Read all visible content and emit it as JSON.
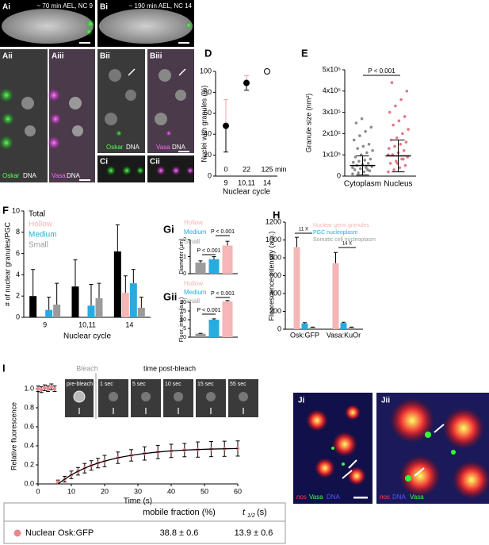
{
  "images": {
    "Ai": {
      "label": "Ai",
      "caption": "~ 70 min AEL, NC 9"
    },
    "Bi": {
      "label": "Bi",
      "caption": "~ 190 min AEL, NC 14"
    },
    "Aii": {
      "label": "Aii",
      "channels": [
        "Oskar",
        "DNA"
      ]
    },
    "Aiii": {
      "label": "Aiii",
      "channels": [
        "Vasa",
        "DNA"
      ]
    },
    "Bii": {
      "label": "Bii",
      "channels": [
        "Oskar",
        "DNA"
      ]
    },
    "Biii": {
      "label": "Biii",
      "channels": [
        "Vasa",
        "DNA"
      ]
    },
    "Ci": {
      "label": "Ci"
    },
    "Cii": {
      "label": "Cii"
    },
    "Ji": {
      "label": "Ji",
      "channels": [
        "nos",
        "Vasa",
        "DNA"
      ]
    },
    "Jii": {
      "label": "Jii",
      "channels": [
        "nos",
        "DNA",
        "Vasa"
      ]
    }
  },
  "table": {
    "mobile_fraction": "mobile fraction (%)",
    "t_half": {
      "symbol": "t",
      "subscript": "1/2",
      "unit": "(s)"
    },
    "rows": [
      [
        "38.8 ± 0.6",
        "13.9 ± 0.6"
      ]
    ]
  },
  "chart_data": [
    {
      "type": "dot",
      "panel": "D",
      "y_label": "Nuclei with granules (%)",
      "x_label": "Nuclear cycle",
      "categories": [
        "9",
        "10,11",
        "14"
      ],
      "values": [
        48,
        89,
        100
      ],
      "errors": [
        25,
        7,
        null
      ],
      "colors": [
        "#000000",
        "#000000",
        "none"
      ],
      "error_color": "#e8a0a0",
      "time_labels": [
        "0",
        "22",
        "125"
      ],
      "time_unit": "min",
      "ylim": [
        0,
        100
      ],
      "yticks": [
        0,
        20,
        40,
        60,
        80,
        100
      ]
    },
    {
      "type": "strip",
      "panel": "E",
      "y_label": "Granule size (nm²)",
      "categories": [
        "Cytoplasm",
        "Nucleus"
      ],
      "colors": [
        "#8c8c8c",
        "#e07a84"
      ],
      "points": [
        [
          10000,
          15000,
          20000,
          25000,
          30000,
          35000,
          40000,
          45000,
          50000,
          55000,
          60000,
          65000,
          70000,
          75000,
          80000,
          90000,
          100000,
          110000,
          120000,
          130000,
          140000,
          150000,
          170000,
          190000,
          210000,
          230000,
          250000,
          270000,
          30000,
          40000
        ],
        [
          20000,
          30000,
          40000,
          50000,
          60000,
          70000,
          80000,
          90000,
          100000,
          110000,
          120000,
          130000,
          140000,
          150000,
          160000,
          170000,
          180000,
          200000,
          220000,
          240000,
          260000,
          280000,
          300000,
          330000,
          360000,
          400000,
          440000,
          60000,
          80000,
          100000
        ]
      ],
      "means": [
        50000,
        95000
      ],
      "sd": [
        45000,
        75000
      ],
      "annotations": [
        "P < 0.001"
      ],
      "ylim": [
        0,
        500000
      ],
      "yticks": [
        0,
        {
          "value": 100000,
          "label": "1x10⁵"
        },
        {
          "value": 200000,
          "label": "2x10⁵"
        },
        {
          "value": 300000,
          "label": "3x10⁵"
        },
        {
          "value": 400000,
          "label": "4x10⁵"
        },
        {
          "value": 500000,
          "label": "5x10⁵"
        }
      ]
    },
    {
      "type": "bar",
      "panel": "F",
      "y_label": "# of nuclear granules/PGC",
      "x_label": "Nuclear cycle",
      "categories": [
        "9",
        "10,11",
        "14"
      ],
      "series": [
        {
          "name": "Total",
          "color": "#000000",
          "values": [
            2,
            2.9,
            6.2
          ],
          "errors": [
            2.5,
            2.5,
            2.5
          ]
        },
        {
          "name": "Hollow",
          "color": "#f4b6b6",
          "values": [
            null,
            null,
            2.3
          ],
          "errors": [
            null,
            null,
            1.6
          ]
        },
        {
          "name": "Medium",
          "color": "#29aae1",
          "values": [
            0.7,
            1.1,
            3.2
          ],
          "errors": [
            1.2,
            2,
            1.3
          ]
        },
        {
          "name": "Small",
          "color": "#9b9b9b",
          "values": [
            1.2,
            1.8,
            0.9
          ],
          "errors": [
            2,
            1.4,
            1
          ]
        }
      ],
      "ylim": [
        0,
        10
      ],
      "yticks": [
        0,
        2,
        4,
        6,
        8,
        10
      ]
    },
    {
      "type": "bar",
      "panel": "Gi",
      "y_label": "Diameter (μm)",
      "categories": [
        null
      ],
      "series": [
        {
          "name": "Hollow",
          "color": "#f4b6b6",
          "values": [
            1.65
          ],
          "errors": [
            0.25
          ]
        },
        {
          "name": "Medium",
          "color": "#29aae1",
          "values": [
            0.85
          ],
          "errors": [
            0.15
          ]
        },
        {
          "name": "Small",
          "color": "#9b9b9b",
          "values": [
            0.65
          ],
          "errors": [
            0.1
          ]
        }
      ],
      "draw_order": [
        2,
        1,
        0
      ],
      "annotations": [
        "P < 0.001",
        "P < 0.001"
      ],
      "ylim": [
        0,
        2
      ],
      "yticks": [
        0,
        1,
        2
      ]
    },
    {
      "type": "bar",
      "panel": "Gii",
      "y_label": "Fluor. intens (a.u.)",
      "categories": [
        null
      ],
      "series": [
        {
          "name": "Hollow",
          "color": "#f4b6b6",
          "values": [
            20.5
          ],
          "errors": [
            0.5
          ]
        },
        {
          "name": "Medium",
          "color": "#29aae1",
          "values": [
            10
          ],
          "errors": [
            0.5
          ]
        },
        {
          "name": "Small",
          "color": "#9b9b9b",
          "values": [
            2
          ],
          "errors": [
            0.2
          ]
        }
      ],
      "draw_order": [
        2,
        1,
        0
      ],
      "annotations": [
        "P < 0.001",
        "P < 0.001"
      ],
      "ylim": [
        0,
        20
      ],
      "yticks": [
        0,
        5,
        10,
        15,
        20
      ]
    },
    {
      "type": "bar",
      "panel": "H",
      "y_label": "Fluorescence intensity (a.u.)",
      "categories": [
        "Osk:GFP",
        "Vasa:KuOr"
      ],
      "series": [
        {
          "name": "Nuclear germ granules",
          "color": "#f4b6b6",
          "values": [
            920,
            740
          ],
          "errors": [
            110,
            120
          ]
        },
        {
          "name": "PGC nucleoplasm",
          "color": "#29aae1",
          "values": [
            65,
            70
          ],
          "errors": [
            8,
            8
          ]
        },
        {
          "name": "Somatic cell nucleoplasm",
          "color": "#9b9b9b",
          "values": [
            20,
            20
          ],
          "errors": [
            4,
            4
          ]
        }
      ],
      "annotations": [
        "11 X",
        "14 X"
      ],
      "ylim": [
        0,
        1200
      ],
      "yticks": [
        0,
        200,
        400,
        600,
        800,
        1000,
        1200
      ]
    },
    {
      "type": "line",
      "panel": "I",
      "y_label": "Relative fluorescence",
      "x_label": "Time (s)",
      "x": [
        0,
        1,
        2,
        3,
        4,
        5,
        6,
        8,
        10,
        12,
        14,
        16,
        18,
        20,
        24,
        28,
        32,
        36,
        40,
        44,
        48,
        52,
        56,
        60
      ],
      "series": [
        {
          "name": "Nuclear Osk:GFP",
          "color": "#e8888f",
          "values": [
            1.0,
            0.99,
            1.01,
            1.0,
            1.02,
            1.0,
            0.02,
            0.05,
            0.095,
            0.133,
            0.165,
            0.194,
            0.219,
            0.24,
            0.275,
            0.3,
            0.32,
            0.335,
            0.347,
            0.355,
            0.361,
            0.366,
            0.369,
            0.372
          ],
          "errors": [
            0.03,
            0.03,
            0.03,
            0.03,
            0.03,
            0.03,
            0.02,
            0.03,
            0.04,
            0.04,
            0.05,
            0.05,
            0.05,
            0.06,
            0.06,
            0.06,
            0.07,
            0.07,
            0.07,
            0.07,
            0.08,
            0.08,
            0.08,
            0.08
          ]
        },
        {
          "color": "#000000",
          "values": [
            null,
            null,
            null,
            null,
            null,
            null,
            0.0,
            0.05,
            0.095,
            0.133,
            0.165,
            0.194,
            0.219,
            0.24,
            0.275,
            0.3,
            0.32,
            0.335,
            0.347,
            0.355,
            0.361,
            0.366,
            0.369,
            0.372
          ]
        }
      ],
      "inset": {
        "bleach": "Bleach",
        "title": "time post-bleach",
        "frames": [
          "pre-bleach",
          "1 sec",
          "5 sec",
          "10 sec",
          "15 sec",
          "55 sec"
        ]
      },
      "xlim": [
        0,
        60
      ],
      "xticks": [
        0,
        10,
        20,
        30,
        40,
        50,
        60
      ],
      "ylim": [
        0,
        1
      ],
      "yticks": [
        {
          "value": 0,
          "label": "0.0"
        },
        {
          "value": 0.2,
          "label": "0.2"
        },
        {
          "value": 0.4,
          "label": "0.4"
        },
        {
          "value": 0.6,
          "label": "0.6"
        },
        {
          "value": 0.8,
          "label": "0.8"
        },
        {
          "value": 1,
          "label": "1.0"
        }
      ]
    }
  ]
}
